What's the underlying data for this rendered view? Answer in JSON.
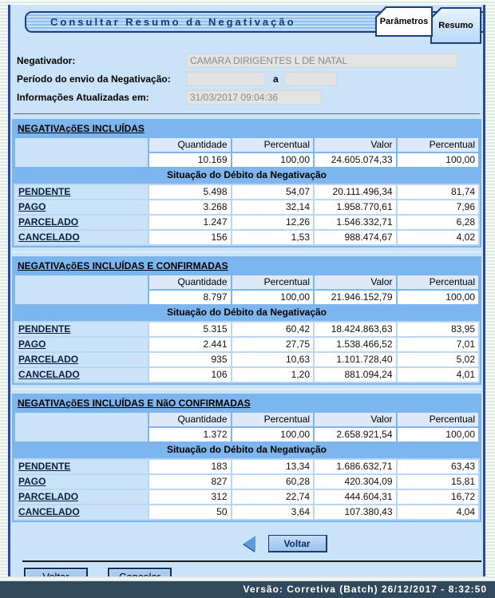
{
  "header": {
    "title": "Consultar Resumo da Negativação",
    "tabs": [
      {
        "label": "Parâmetros"
      },
      {
        "label": "Resumo"
      }
    ]
  },
  "form": {
    "negativador": {
      "label": "Negativador:",
      "value": "CAMARA DIRIGENTES L DE NATAL"
    },
    "periodo": {
      "label": "Período do envio da Negativação:",
      "from": "",
      "separator": "a",
      "to": ""
    },
    "atualizado": {
      "label": "Informações Atualizadas em:",
      "value": "31/03/2017 09:04:36"
    }
  },
  "summary": {
    "columns": [
      "Quantidade",
      "Percentual",
      "Valor",
      "Percentual"
    ],
    "situation_header": "Situação do Débito da Negativação",
    "sections": [
      {
        "title": "NEGATIVAçõES INCLUÍDAS",
        "total": [
          "10.169",
          "100,00",
          "24.605.074,33",
          "100,00"
        ],
        "rows": [
          {
            "label": "PENDENTE",
            "values": [
              "5.498",
              "54,07",
              "20.111.496,34",
              "81,74"
            ]
          },
          {
            "label": "PAGO",
            "values": [
              "3.268",
              "32,14",
              "1.958.770,61",
              "7,96"
            ]
          },
          {
            "label": "PARCELADO",
            "values": [
              "1.247",
              "12,26",
              "1.546.332,71",
              "6,28"
            ]
          },
          {
            "label": "CANCELADO",
            "values": [
              "156",
              "1,53",
              "988.474,67",
              "4,02"
            ]
          }
        ]
      },
      {
        "title": "NEGATIVAçõES INCLUÍDAS E CONFIRMADAS",
        "total": [
          "8.797",
          "100,00",
          "21.946.152,79",
          "100,00"
        ],
        "rows": [
          {
            "label": "PENDENTE",
            "values": [
              "5.315",
              "60,42",
              "18.424.863,63",
              "83,95"
            ]
          },
          {
            "label": "PAGO",
            "values": [
              "2.441",
              "27,75",
              "1.538.466,52",
              "7,01"
            ]
          },
          {
            "label": "PARCELADO",
            "values": [
              "935",
              "10,63",
              "1.101.728,40",
              "5,02"
            ]
          },
          {
            "label": "CANCELADO",
            "values": [
              "106",
              "1,20",
              "881.094,24",
              "4,01"
            ]
          }
        ]
      },
      {
        "title": "NEGATIVAçõES INCLUÍDAS E NãO CONFIRMADAS",
        "total": [
          "1.372",
          "100,00",
          "2.658.921,54",
          "100,00"
        ],
        "rows": [
          {
            "label": "PENDENTE",
            "values": [
              "183",
              "13,34",
              "1.686.632,71",
              "63,43"
            ]
          },
          {
            "label": "PAGO",
            "values": [
              "827",
              "60,28",
              "420.304,09",
              "15,81"
            ]
          },
          {
            "label": "PARCELADO",
            "values": [
              "312",
              "22,74",
              "444.604,31",
              "16,72"
            ]
          },
          {
            "label": "CANCELADO",
            "values": [
              "50",
              "3,64",
              "107.380,43",
              "4,04"
            ]
          }
        ]
      }
    ]
  },
  "buttons": {
    "back_inline": "Voltar",
    "back": "Voltar",
    "cancel": "Cancelar"
  },
  "footer": {
    "version_text": "Versão: Corretiva (Batch) 26/12/2017 - 8:32:50"
  },
  "colors": {
    "content_bg": "#cbe3f8",
    "band_blue": "#7db5ee",
    "header_cell": "#dde9f8",
    "accent_border": "#1d3f7d",
    "footer_bg": "#31495c",
    "field_bg": "#e3e3e3"
  }
}
